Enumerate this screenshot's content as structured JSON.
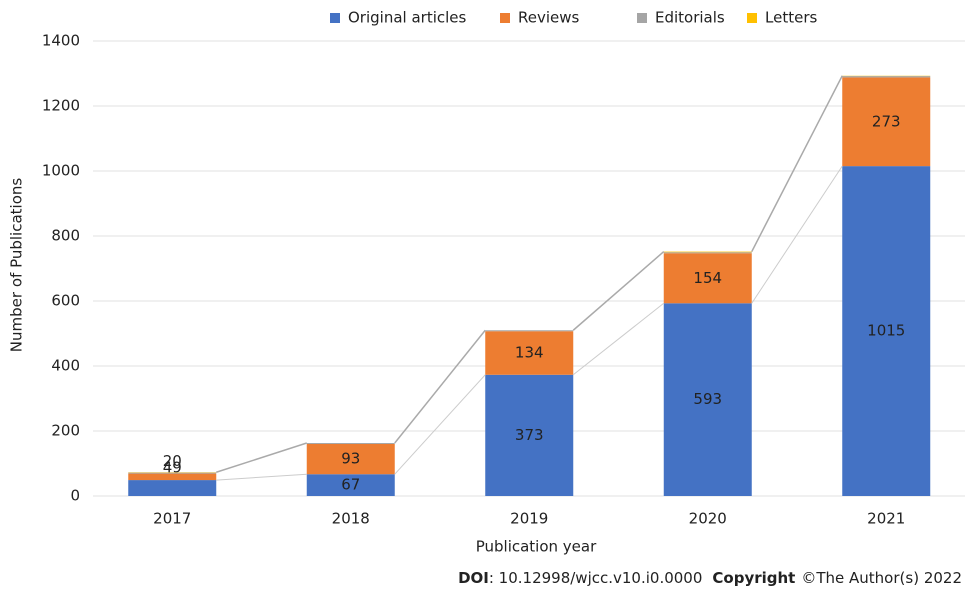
{
  "chart_data": {
    "type": "stacked_bar",
    "categories": [
      "2017",
      "2018",
      "2019",
      "2020",
      "2021"
    ],
    "series": [
      {
        "name": "Original articles",
        "color": "#4472c4",
        "values": [
          49,
          67,
          373,
          593,
          1015
        ]
      },
      {
        "name": "Reviews",
        "color": "#ed7d31",
        "values": [
          20,
          93,
          134,
          154,
          273
        ]
      },
      {
        "name": "Editorials",
        "color": "#a5a5a5",
        "values": [
          3,
          3,
          3,
          3,
          4
        ]
      },
      {
        "name": "Letters",
        "color": "#ffc000",
        "values": [
          1,
          0,
          0,
          2,
          1
        ]
      }
    ],
    "labeled_series": [
      0,
      1
    ],
    "x_label": "Publication year",
    "y_label": "Number of Publications",
    "ylim": [
      0,
      1400
    ],
    "yticks": [
      0,
      200,
      400,
      600,
      800,
      1000,
      1200,
      1400
    ],
    "grid": true,
    "legend": "top"
  },
  "footer": {
    "doi_label": "DOI",
    "doi_value": ": 10.12998/wjcc.v10.i0.0000",
    "copyright_label": "Copyright",
    "copyright_value": "©The Author(s) 2022"
  }
}
